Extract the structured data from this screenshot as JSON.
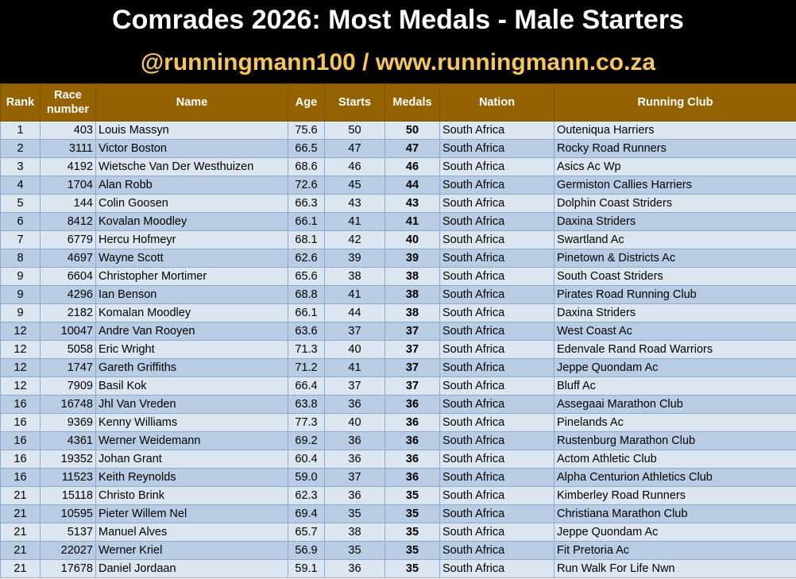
{
  "header": {
    "title": "Comrades 2026: Most Medals - Male Starters",
    "subtitle": "@runningmann100 / www.runningmann.co.za"
  },
  "table": {
    "columns": [
      "Rank",
      "Race number",
      "Name",
      "Age",
      "Starts",
      "Medals",
      "Nation",
      "Running Club"
    ],
    "rows": [
      [
        "1",
        "403",
        "Louis Massyn",
        "75.6",
        "50",
        "50",
        "South Africa",
        "Outeniqua Harriers"
      ],
      [
        "2",
        "3111",
        "Victor Boston",
        "66.5",
        "47",
        "47",
        "South Africa",
        "Rocky Road Runners"
      ],
      [
        "3",
        "4192",
        "Wietsche Van Der Westhuizen",
        "68.6",
        "46",
        "46",
        "South Africa",
        "Asics Ac Wp"
      ],
      [
        "4",
        "1704",
        "Alan Robb",
        "72.6",
        "45",
        "44",
        "South Africa",
        "Germiston Callies Harriers"
      ],
      [
        "5",
        "144",
        "Colin Goosen",
        "66.3",
        "43",
        "43",
        "South Africa",
        "Dolphin Coast Striders"
      ],
      [
        "6",
        "8412",
        "Kovalan Moodley",
        "66.1",
        "41",
        "41",
        "South Africa",
        "Daxina Striders"
      ],
      [
        "7",
        "6779",
        "Hercu Hofmeyr",
        "68.1",
        "42",
        "40",
        "South Africa",
        "Swartland Ac"
      ],
      [
        "8",
        "4697",
        "Wayne Scott",
        "62.6",
        "39",
        "39",
        "South Africa",
        "Pinetown & Districts Ac"
      ],
      [
        "9",
        "6604",
        "Christopher Mortimer",
        "65.6",
        "38",
        "38",
        "South Africa",
        "South Coast Striders"
      ],
      [
        "9",
        "4296",
        "Ian Benson",
        "68.8",
        "41",
        "38",
        "South Africa",
        "Pirates Road Running Club"
      ],
      [
        "9",
        "2182",
        "Komalan Moodley",
        "66.1",
        "44",
        "38",
        "South Africa",
        "Daxina Striders"
      ],
      [
        "12",
        "10047",
        "Andre Van Rooyen",
        "63.6",
        "37",
        "37",
        "South Africa",
        "West Coast Ac"
      ],
      [
        "12",
        "5058",
        "Eric Wright",
        "71.3",
        "40",
        "37",
        "South Africa",
        "Edenvale Rand Road Warriors"
      ],
      [
        "12",
        "1747",
        "Gareth Griffiths",
        "71.2",
        "41",
        "37",
        "South Africa",
        "Jeppe Quondam Ac"
      ],
      [
        "12",
        "7909",
        "Basil Kok",
        "66.4",
        "37",
        "37",
        "South Africa",
        "Bluff Ac"
      ],
      [
        "16",
        "16748",
        "Jhl Van Vreden",
        "63.8",
        "36",
        "36",
        "South Africa",
        "Assegaai Marathon Club"
      ],
      [
        "16",
        "9369",
        "Kenny Williams",
        "77.3",
        "40",
        "36",
        "South Africa",
        "Pinelands Ac"
      ],
      [
        "16",
        "4361",
        "Werner Weidemann",
        "69.2",
        "36",
        "36",
        "South Africa",
        "Rustenburg Marathon Club"
      ],
      [
        "16",
        "19352",
        "Johan Grant",
        "60.4",
        "36",
        "36",
        "South Africa",
        "Actom Athletic Club"
      ],
      [
        "16",
        "11523",
        "Keith Reynolds",
        "59.0",
        "37",
        "36",
        "South Africa",
        "Alpha Centurion Athletics Club"
      ],
      [
        "21",
        "15118",
        "Christo Brink",
        "62.3",
        "36",
        "35",
        "South Africa",
        "Kimberley Road Runners"
      ],
      [
        "21",
        "10595",
        "Pieter Willem Nel",
        "69.4",
        "35",
        "35",
        "South Africa",
        "Christiana Marathon Club"
      ],
      [
        "21",
        "5137",
        "Manuel Alves",
        "65.7",
        "38",
        "35",
        "South Africa",
        "Jeppe Quondam Ac"
      ],
      [
        "21",
        "22027",
        "Werner Kriel",
        "56.9",
        "35",
        "35",
        "South Africa",
        "Fit Pretoria Ac"
      ],
      [
        "21",
        "17678",
        "Daniel Jordaan",
        "59.1",
        "36",
        "35",
        "South Africa",
        "Run Walk For Life Nwn"
      ]
    ]
  }
}
